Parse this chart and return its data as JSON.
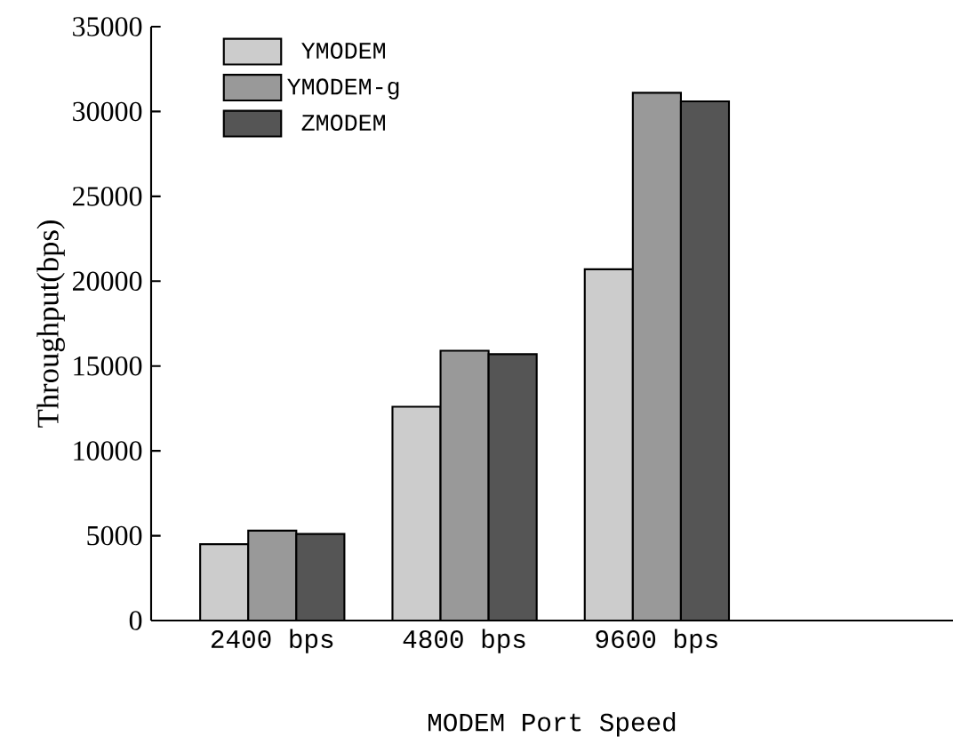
{
  "chart_data": {
    "type": "bar",
    "xlabel": "MODEM Port Speed",
    "ylabel": "Throughput(bps)",
    "categories": [
      "2400  bps",
      "4800  bps",
      "9600  bps"
    ],
    "series": [
      {
        "name": "YMODEM",
        "color": "#cccccc",
        "values": [
          4500,
          12600,
          20700
        ]
      },
      {
        "name": "YMODEM-g",
        "color": "#999999",
        "values": [
          5300,
          15900,
          31100
        ]
      },
      {
        "name": "ZMODEM",
        "color": "#555555",
        "values": [
          5100,
          15700,
          30600
        ]
      }
    ],
    "ylim": [
      0,
      35000
    ],
    "yticks": [
      0,
      5000,
      10000,
      15000,
      20000,
      25000,
      30000,
      35000
    ],
    "legend": "top left"
  }
}
